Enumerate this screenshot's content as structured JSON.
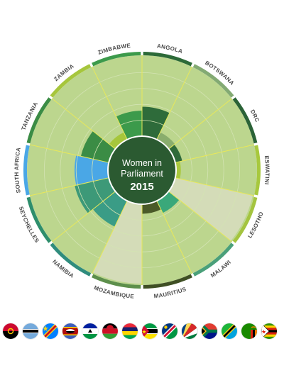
{
  "chart_data": {
    "type": "polar-bar",
    "title_line1": "Women in",
    "title_line2": "Parliament",
    "year": "2015",
    "categories": [
      "ANGOLA",
      "BOTSWANA",
      "DRC",
      "ESWATINI",
      "LESOTHO",
      "MALAWI",
      "MAURITIUS",
      "MOZAMBIQUE",
      "NAMIBIA",
      "SEYCHELLES",
      "SOUTH AFRICA",
      "TANZANIA",
      "ZAMBIA",
      "ZIMBABWE"
    ],
    "values": [
      37,
      10,
      9,
      6,
      100,
      17,
      12,
      100,
      36,
      44,
      42,
      36,
      10,
      32
    ],
    "bar_colors": [
      "#2e6b3a",
      "#8aad6d",
      "#2f6a3a",
      "#a9c93e",
      "#d4dcb8",
      "#3aa87a",
      "#4a5a28",
      "#d4dcb8",
      "#3a9c86",
      "#3d9978",
      "#4aa7e6",
      "#3b8c45",
      "#a6c63c",
      "#3c9a4b"
    ],
    "rim_colors": [
      "#2c6a38",
      "#83aa73",
      "#2b6337",
      "#a7c83d",
      "#a4c43f",
      "#4aa07a",
      "#3f4f24",
      "#5d8f4b",
      "#2f8c7d",
      "#2e8e6c",
      "#4aa7e6",
      "#3b8c45",
      "#a6c63c",
      "#3c9a4b"
    ],
    "background_color": "#bcd68e",
    "ring_color": "#d3e3b3",
    "spoke_color": "#e8e85a",
    "center_color": "#2b5a31",
    "rmax": 100,
    "grid_rings": 4
  },
  "flags": [
    "Angola",
    "Botswana",
    "DRC",
    "Eswatini",
    "Lesotho",
    "Malawi",
    "Mauritius",
    "Mozambique",
    "Namibia",
    "Seychelles",
    "South Africa",
    "Tanzania",
    "Zambia",
    "Zimbabwe"
  ]
}
